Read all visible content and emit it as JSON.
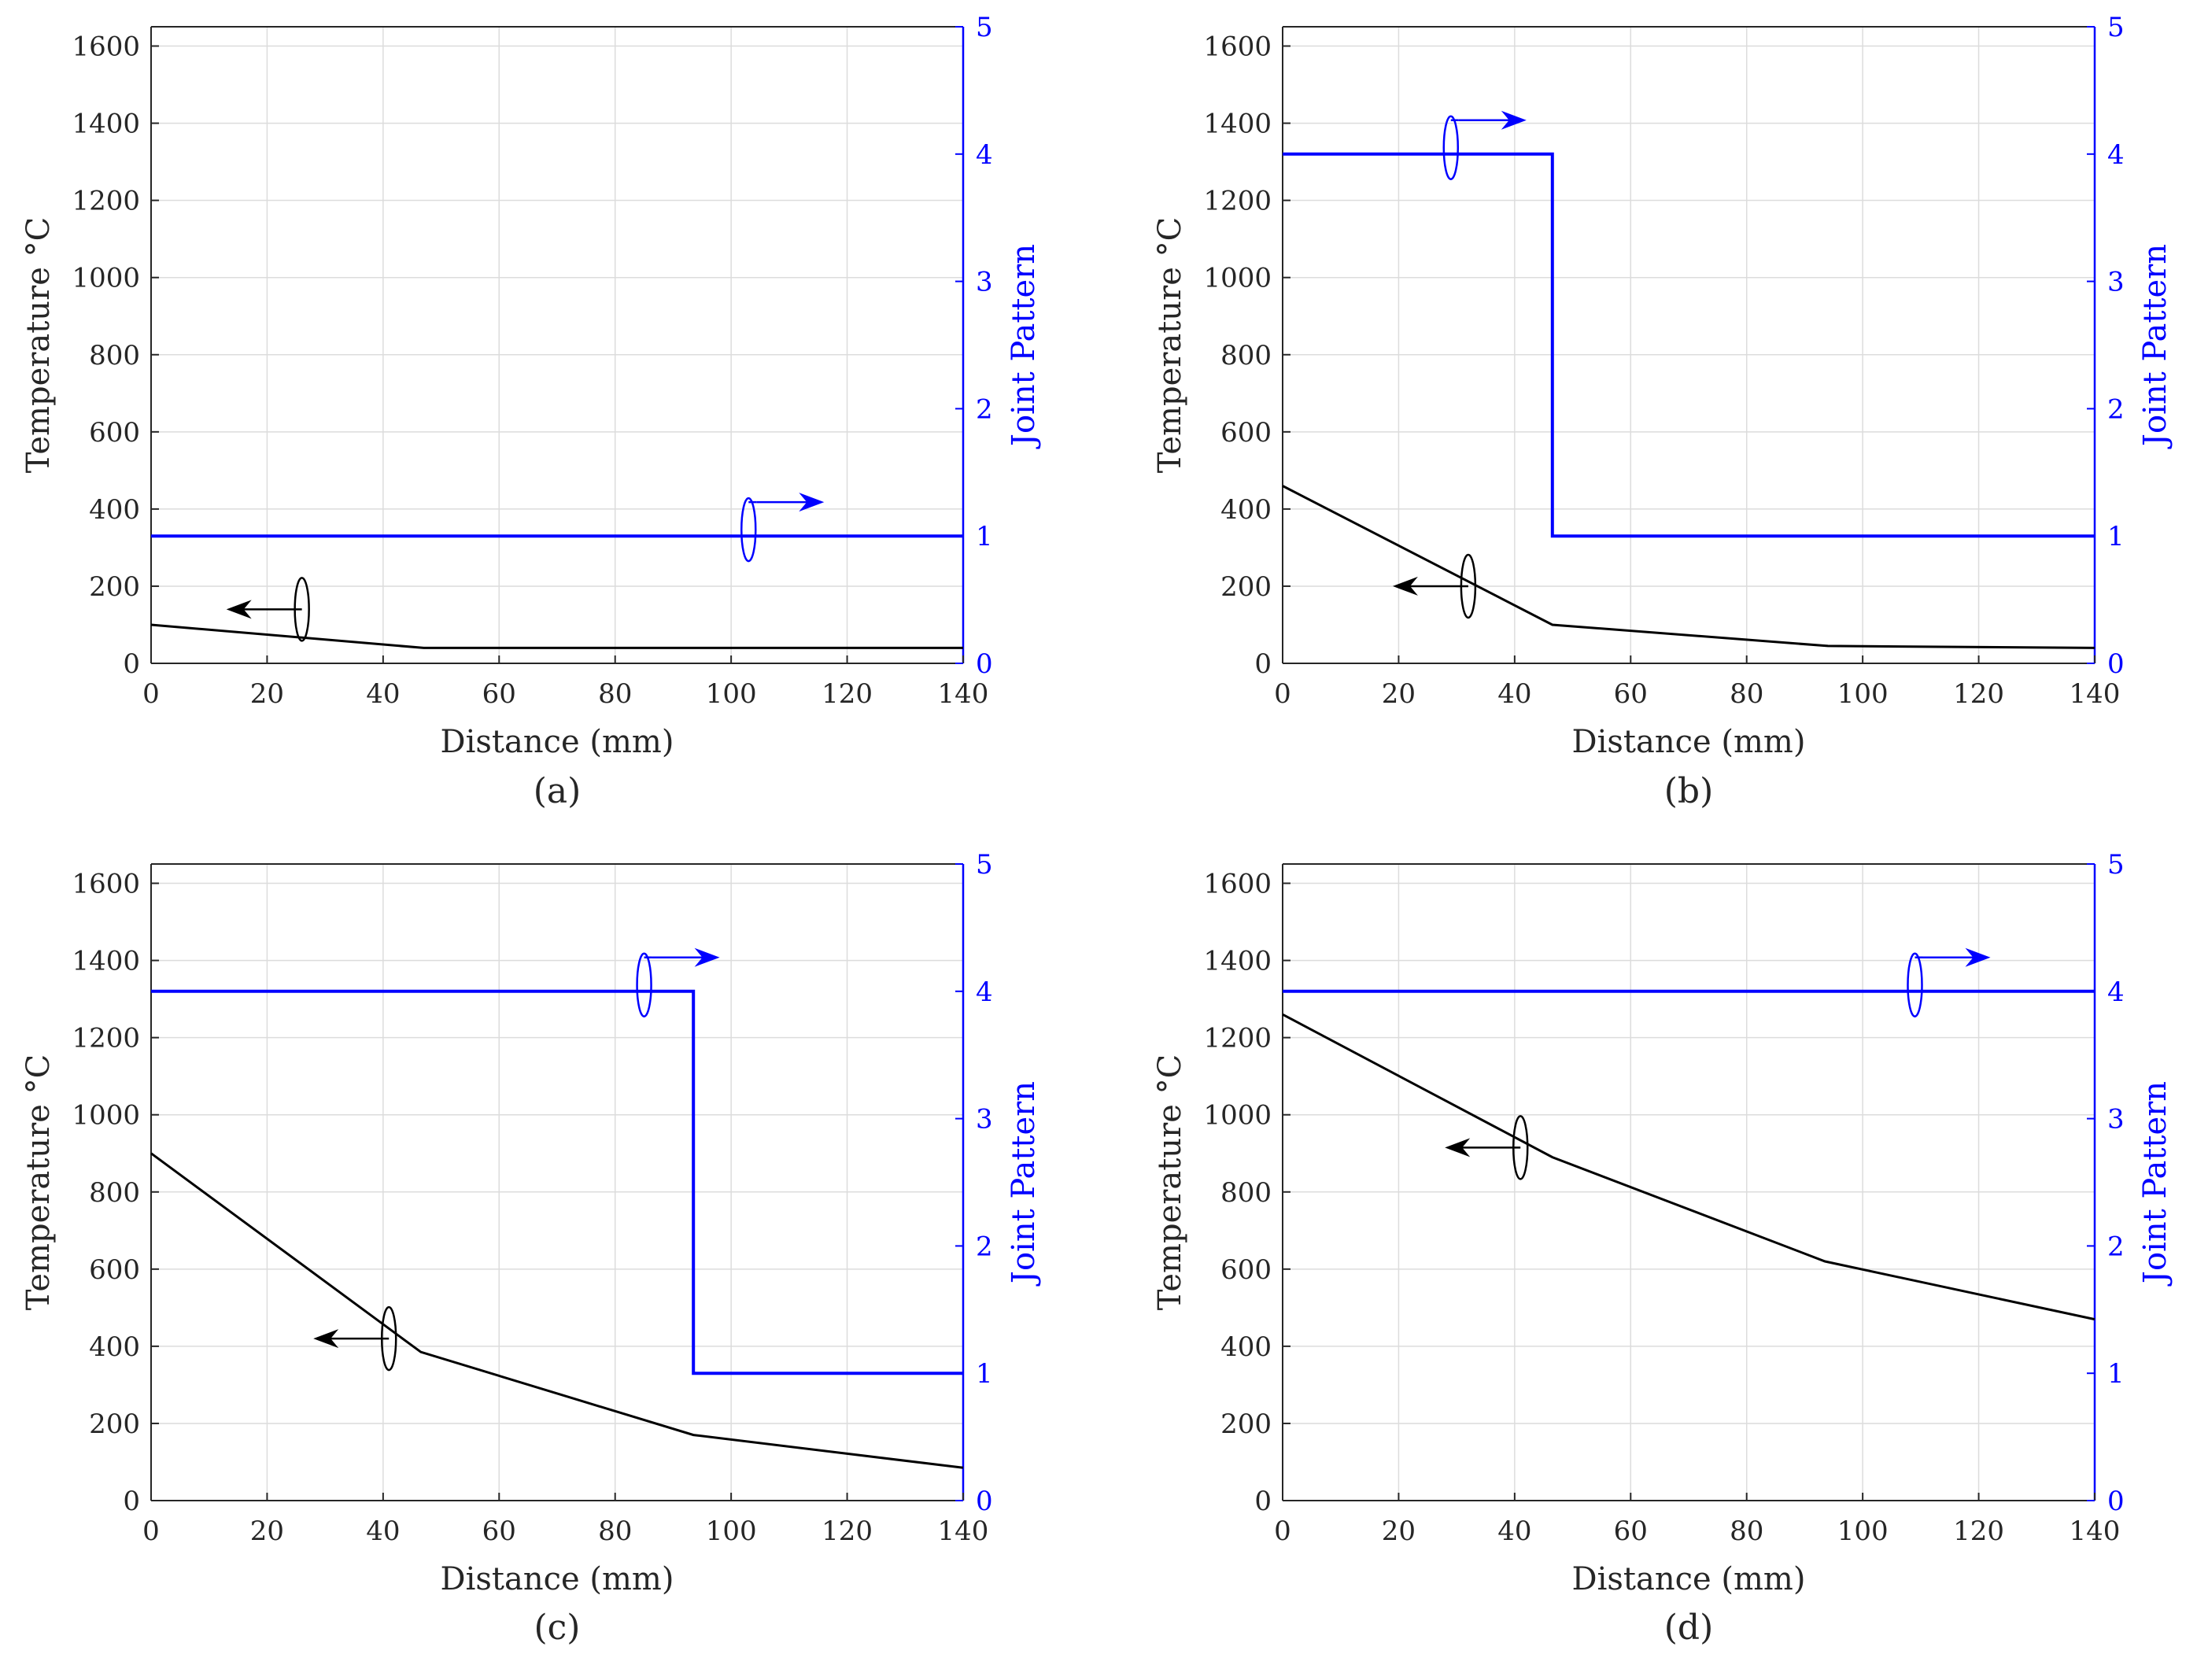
{
  "chart_data": [
    {
      "type": "line",
      "panel_label": "(a)",
      "xlabel": "Distance (mm)",
      "ylabel": "Temperature °C",
      "y2label": "Joint Pattern",
      "xlim": [
        0,
        140
      ],
      "ylim": [
        0,
        1650
      ],
      "y2lim": [
        0,
        5
      ],
      "xticks": [
        "0",
        "20",
        "40",
        "60",
        "80",
        "100",
        "120",
        "140"
      ],
      "yticks": [
        "0",
        "200",
        "400",
        "600",
        "800",
        "1000",
        "1200",
        "1400",
        "1600"
      ],
      "y2ticks": [
        "0",
        "1",
        "2",
        "3",
        "4",
        "5"
      ],
      "grid": true,
      "series": [
        {
          "name": "Temperature",
          "axis": "left",
          "color": "#000000",
          "x": [
            0,
            47,
            94,
            140
          ],
          "y": [
            100,
            40,
            40,
            40
          ]
        },
        {
          "name": "Joint Pattern",
          "axis": "right",
          "color": "#0000ff",
          "step": true,
          "x": [
            0,
            140
          ],
          "y": [
            1,
            1
          ]
        }
      ],
      "annotations": [
        {
          "target": "left",
          "x": 26,
          "y": 140
        },
        {
          "target": "right",
          "x": 103,
          "y": 1.05
        }
      ]
    },
    {
      "type": "line",
      "panel_label": "(b)",
      "xlabel": "Distance (mm)",
      "ylabel": "Temperature °C",
      "y2label": "Joint Pattern",
      "xlim": [
        0,
        140
      ],
      "ylim": [
        0,
        1650
      ],
      "y2lim": [
        0,
        5
      ],
      "xticks": [
        "0",
        "20",
        "40",
        "60",
        "80",
        "100",
        "120",
        "140"
      ],
      "yticks": [
        "0",
        "200",
        "400",
        "600",
        "800",
        "1000",
        "1200",
        "1400",
        "1600"
      ],
      "y2ticks": [
        "0",
        "1",
        "2",
        "3",
        "4",
        "5"
      ],
      "grid": true,
      "series": [
        {
          "name": "Temperature",
          "axis": "left",
          "color": "#000000",
          "x": [
            0,
            46.5,
            94,
            140
          ],
          "y": [
            460,
            100,
            45,
            40
          ]
        },
        {
          "name": "Joint Pattern",
          "axis": "right",
          "color": "#0000ff",
          "step": true,
          "x": [
            0,
            46.5,
            46.5,
            140
          ],
          "y": [
            4,
            4,
            1,
            1
          ]
        }
      ],
      "annotations": [
        {
          "target": "left",
          "x": 32,
          "y": 200
        },
        {
          "target": "right",
          "x": 29,
          "y": 4.05
        }
      ]
    },
    {
      "type": "line",
      "panel_label": "(c)",
      "xlabel": "Distance (mm)",
      "ylabel": "Temperature °C",
      "y2label": "Joint Pattern",
      "xlim": [
        0,
        140
      ],
      "ylim": [
        0,
        1650
      ],
      "y2lim": [
        0,
        5
      ],
      "xticks": [
        "0",
        "20",
        "40",
        "60",
        "80",
        "100",
        "120",
        "140"
      ],
      "yticks": [
        "0",
        "200",
        "400",
        "600",
        "800",
        "1000",
        "1200",
        "1400",
        "1600"
      ],
      "y2ticks": [
        "0",
        "1",
        "2",
        "3",
        "4",
        "5"
      ],
      "grid": true,
      "series": [
        {
          "name": "Temperature",
          "axis": "left",
          "color": "#000000",
          "x": [
            0,
            46.5,
            93.5,
            140
          ],
          "y": [
            900,
            385,
            170,
            85
          ]
        },
        {
          "name": "Joint Pattern",
          "axis": "right",
          "color": "#0000ff",
          "step": true,
          "x": [
            0,
            93.5,
            93.5,
            140
          ],
          "y": [
            4,
            4,
            1,
            1
          ]
        }
      ],
      "annotations": [
        {
          "target": "left",
          "x": 41,
          "y": 420
        },
        {
          "target": "right",
          "x": 85,
          "y": 4.05
        }
      ]
    },
    {
      "type": "line",
      "panel_label": "(d)",
      "xlabel": "Distance (mm)",
      "ylabel": "Temperature °C",
      "y2label": "Joint Pattern",
      "xlim": [
        0,
        140
      ],
      "ylim": [
        0,
        1650
      ],
      "y2lim": [
        0,
        5
      ],
      "xticks": [
        "0",
        "20",
        "40",
        "60",
        "80",
        "100",
        "120",
        "140"
      ],
      "yticks": [
        "0",
        "200",
        "400",
        "600",
        "800",
        "1000",
        "1200",
        "1400",
        "1600"
      ],
      "y2ticks": [
        "0",
        "1",
        "2",
        "3",
        "4",
        "5"
      ],
      "grid": true,
      "series": [
        {
          "name": "Temperature",
          "axis": "left",
          "color": "#000000",
          "x": [
            0,
            46.5,
            93.5,
            140
          ],
          "y": [
            1260,
            890,
            620,
            470
          ]
        },
        {
          "name": "Joint Pattern",
          "axis": "right",
          "color": "#0000ff",
          "step": true,
          "x": [
            0,
            140
          ],
          "y": [
            4,
            4
          ]
        }
      ],
      "annotations": [
        {
          "target": "left",
          "x": 41,
          "y": 915
        },
        {
          "target": "right",
          "x": 109,
          "y": 4.05
        }
      ]
    }
  ]
}
